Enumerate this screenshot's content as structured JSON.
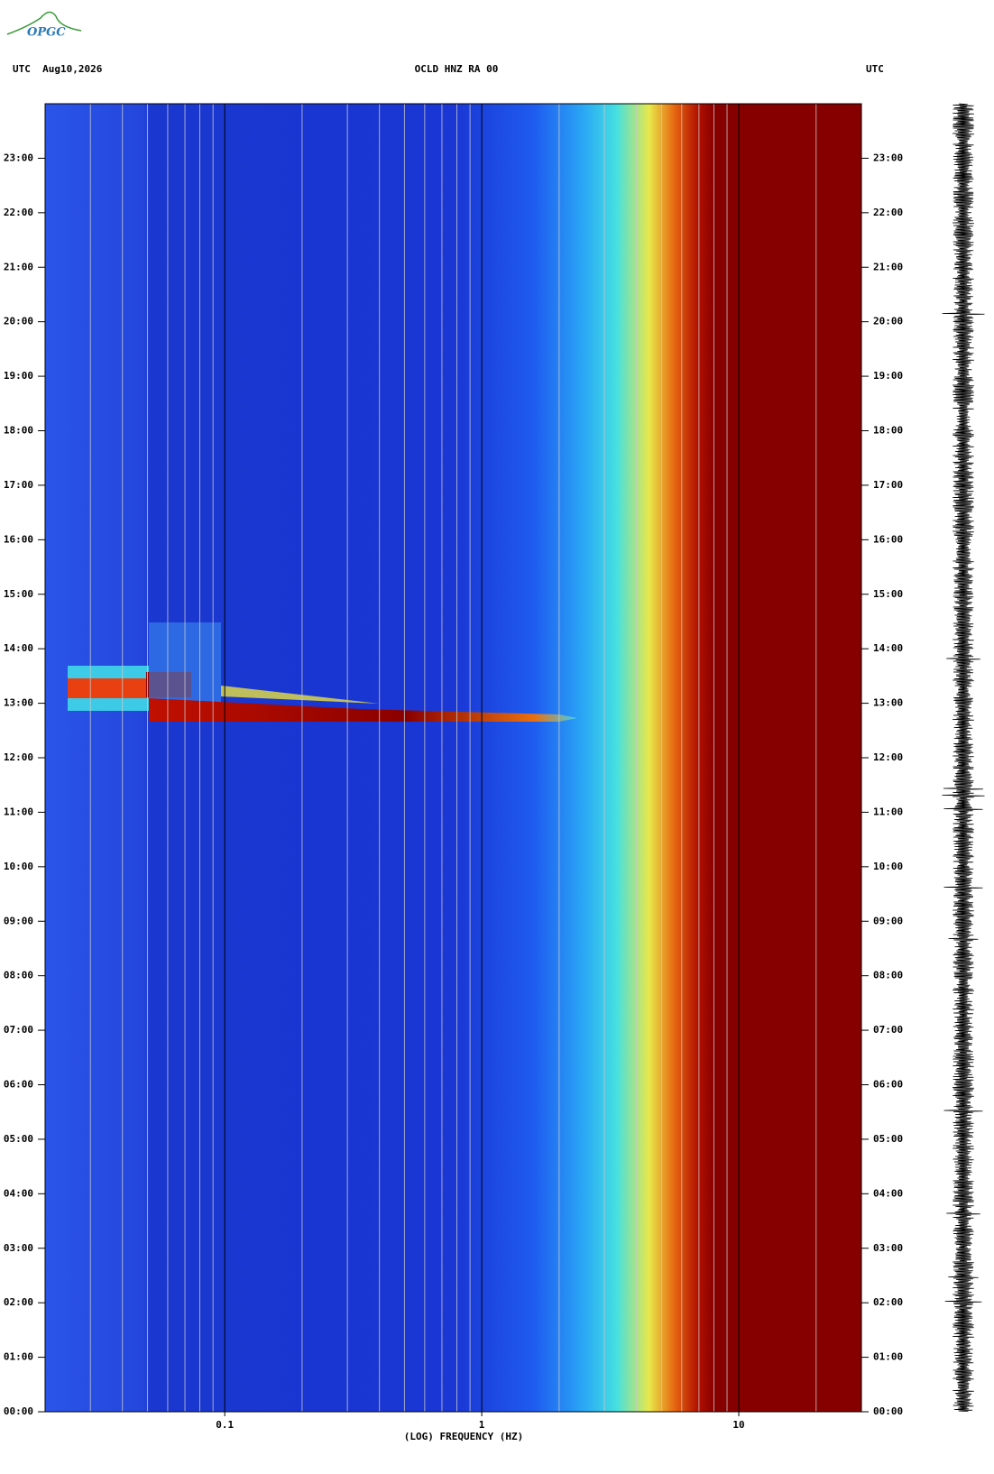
{
  "chart_data": {
    "type": "spectrogram",
    "logo": "OPGC",
    "header_left": "UTC  Aug10,2026",
    "title": "OCLD HNZ RA 00",
    "header_right": "UTC",
    "xlabel": "(LOG) FREQUENCY (HZ)",
    "xscale": "log",
    "xlim": [
      0.02,
      30
    ],
    "xticks": [
      0.1,
      1,
      10
    ],
    "xgrid": [
      0.03,
      0.04,
      0.05,
      0.06,
      0.07,
      0.08,
      0.09,
      0.1,
      0.2,
      0.3,
      0.4,
      0.5,
      0.6,
      0.7,
      0.8,
      0.9,
      1,
      2,
      3,
      4,
      5,
      6,
      7,
      8,
      9,
      10,
      20
    ],
    "ylim": [
      0,
      24
    ],
    "yticks": [
      {
        "value": 0,
        "label": "00:00"
      },
      {
        "value": 1,
        "label": "01:00"
      },
      {
        "value": 2,
        "label": "02:00"
      },
      {
        "value": 3,
        "label": "03:00"
      },
      {
        "value": 4,
        "label": "04:00"
      },
      {
        "value": 5,
        "label": "05:00"
      },
      {
        "value": 6,
        "label": "06:00"
      },
      {
        "value": 7,
        "label": "07:00"
      },
      {
        "value": 8,
        "label": "08:00"
      },
      {
        "value": 9,
        "label": "09:00"
      },
      {
        "value": 10,
        "label": "10:00"
      },
      {
        "value": 11,
        "label": "11:00"
      },
      {
        "value": 12,
        "label": "12:00"
      },
      {
        "value": 13,
        "label": "13:00"
      },
      {
        "value": 14,
        "label": "14:00"
      },
      {
        "value": 15,
        "label": "15:00"
      },
      {
        "value": 16,
        "label": "16:00"
      },
      {
        "value": 17,
        "label": "17:00"
      },
      {
        "value": 18,
        "label": "18:00"
      },
      {
        "value": 19,
        "label": "19:00"
      },
      {
        "value": 20,
        "label": "20:00"
      },
      {
        "value": 21,
        "label": "21:00"
      },
      {
        "value": 22,
        "label": "22:00"
      },
      {
        "value": 23,
        "label": "23:00"
      }
    ]
  }
}
